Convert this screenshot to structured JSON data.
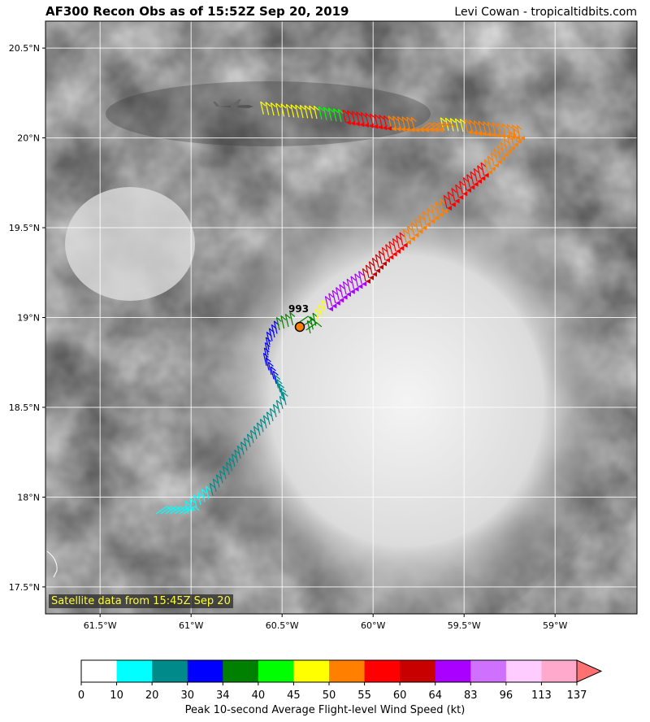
{
  "header": {
    "title": "AF300 Recon Obs as of 15:52Z Sep 20, 2019",
    "credit": "Levi Cowan - tropicaltidbits.com"
  },
  "map": {
    "lon_range": [
      -61.8,
      -58.55
    ],
    "lat_range": [
      17.35,
      20.65
    ],
    "lat_ticks": [
      "17.5°N",
      "18°N",
      "18.5°N",
      "19°N",
      "19.5°N",
      "20°N",
      "20.5°N"
    ],
    "lon_ticks": [
      "61.5°W",
      "61°W",
      "60.5°W",
      "60°W",
      "59.5°W",
      "59°W"
    ],
    "center_pressure_label": "993",
    "satellite_note": "Satellite data from 15:45Z Sep 20",
    "aircraft_icon": "aircraft-icon"
  },
  "colorbar": {
    "ticks": [
      "0",
      "10",
      "20",
      "30",
      "34",
      "40",
      "45",
      "50",
      "55",
      "60",
      "64",
      "83",
      "96",
      "113",
      "137"
    ],
    "colors": [
      "#ffffff",
      "#00ffff",
      "#008b8b",
      "#0000ff",
      "#008000",
      "#00ff00",
      "#ffff00",
      "#ff8000",
      "#ff0000",
      "#c80000",
      "#aa00ff",
      "#d070ff",
      "#ffccff",
      "#ffaacc",
      "#ff7070"
    ],
    "label": "Peak 10-second Average Flight-level Wind Speed (kt)"
  }
}
